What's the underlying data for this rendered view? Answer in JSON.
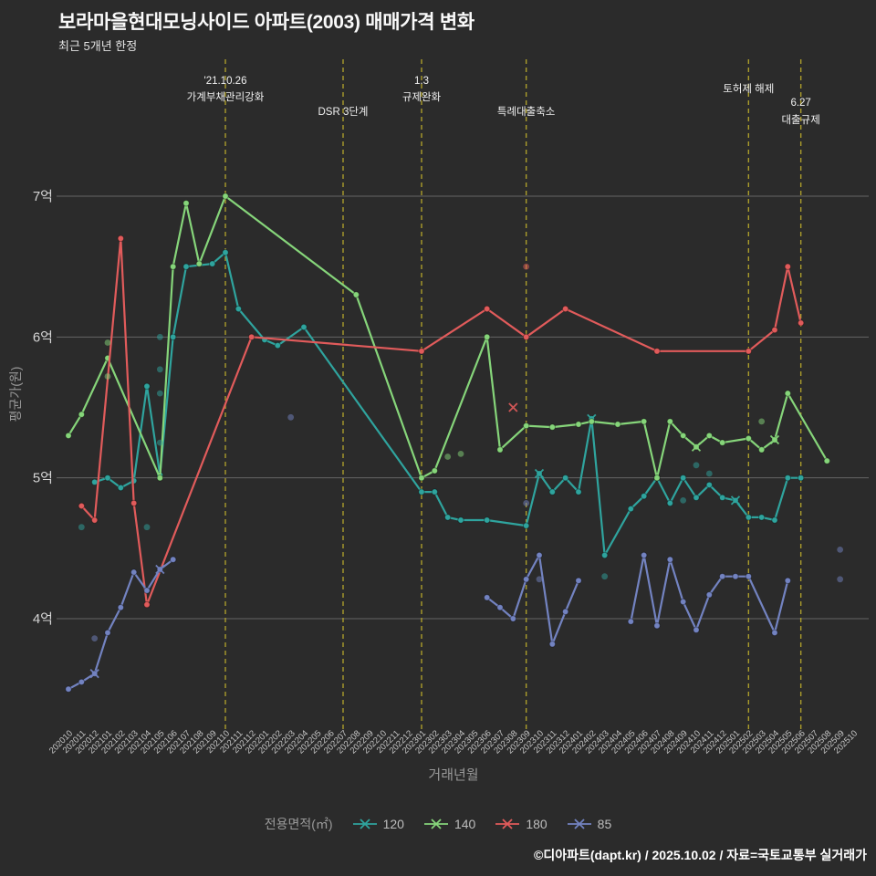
{
  "chart_data": {
    "type": "line",
    "title": "보라마을현대모닝사이드 아파트(2003) 매매가격 변화",
    "subtitle": "최근 5개년 한정",
    "xlabel": "거래년월",
    "ylabel": "평균가(원)",
    "footer": "©디아파트(dapt.kr) / 2025.10.02 / 자료=국토교통부 실거래가",
    "background": "#2b2b2b",
    "grid_color": "rgba(255,255,255,0.28)",
    "annotation_color": "#b2a42c",
    "annotation_text_color": "#f0f0f0",
    "x_tick_color": "#c8c8c8",
    "y_tick_color": "#d5d5d5",
    "axis_title_color": "#999999",
    "ylim": [
      3.2,
      7.97
    ],
    "y_ticks": [
      {
        "label": "4억",
        "value": 4
      },
      {
        "label": "5억",
        "value": 5
      },
      {
        "label": "6억",
        "value": 6
      },
      {
        "label": "7억",
        "value": 7
      }
    ],
    "x_categories": [
      "202010",
      "202011",
      "202012",
      "202101",
      "202102",
      "202103",
      "202104",
      "202105",
      "202106",
      "202107",
      "202108",
      "202109",
      "202110",
      "202111",
      "202112",
      "202201",
      "202202",
      "202203",
      "202204",
      "202205",
      "202206",
      "202207",
      "202208",
      "202209",
      "202210",
      "202211",
      "202212",
      "202301",
      "202302",
      "202303",
      "202304",
      "202305",
      "202306",
      "202307",
      "202308",
      "202309",
      "202310",
      "202311",
      "202312",
      "202401",
      "202402",
      "202403",
      "202404",
      "202405",
      "202406",
      "202407",
      "202408",
      "202409",
      "202410",
      "202411",
      "202412",
      "202501",
      "202502",
      "202503",
      "202504",
      "202505",
      "202506",
      "202507",
      "202508",
      "202509",
      "202510"
    ],
    "legend": {
      "title": "전용면적(㎡)"
    },
    "series": [
      {
        "name": "120",
        "color": "#2fa49e",
        "segments": [
          [
            [
              "202012",
              4.97
            ],
            [
              "202101",
              5.0
            ],
            [
              "202102",
              4.93
            ],
            [
              "202103",
              4.98
            ],
            [
              "202104",
              5.65
            ],
            [
              "202105",
              5.02
            ],
            [
              "202106",
              6.0
            ],
            [
              "202107",
              6.5
            ],
            [
              "202109",
              6.52
            ],
            [
              "202110",
              6.6
            ],
            [
              "202111",
              6.2
            ],
            [
              "202201",
              5.98
            ],
            [
              "202202",
              5.94
            ],
            [
              "202204",
              6.07
            ],
            [
              "202301",
              4.9
            ],
            [
              "202302",
              4.9
            ],
            [
              "202303",
              4.72
            ],
            [
              "202304",
              4.7
            ],
            [
              "202306",
              4.7
            ],
            [
              "202309",
              4.66
            ],
            [
              "202310",
              5.03
            ],
            [
              "202311",
              4.9
            ],
            [
              "202312",
              5.0
            ],
            [
              "202401",
              4.9
            ],
            [
              "202402",
              5.42
            ],
            [
              "202403",
              4.45
            ],
            [
              "202405",
              4.78
            ],
            [
              "202406",
              4.87
            ],
            [
              "202407",
              5.0
            ],
            [
              "202408",
              4.82
            ],
            [
              "202409",
              5.0
            ],
            [
              "202410",
              4.86
            ],
            [
              "202411",
              4.95
            ],
            [
              "202412",
              4.86
            ],
            [
              "202501",
              4.84
            ],
            [
              "202502",
              4.72
            ],
            [
              "202503",
              4.72
            ],
            [
              "202504",
              4.7
            ],
            [
              "202505",
              5.0
            ],
            [
              "202506",
              5.0
            ]
          ]
        ],
        "x_markers": [
          [
            "202310",
            5.03
          ],
          [
            "202402",
            5.42
          ],
          [
            "202501",
            4.84
          ]
        ]
      },
      {
        "name": "140",
        "color": "#86d57a",
        "segments": [
          [
            [
              "202010",
              5.3
            ],
            [
              "202011",
              5.45
            ],
            [
              "202101",
              5.85
            ],
            [
              "202105",
              5.0
            ],
            [
              "202106",
              6.5
            ],
            [
              "202107",
              6.95
            ],
            [
              "202108",
              6.52
            ],
            [
              "202110",
              7.0
            ],
            [
              "202208",
              6.3
            ],
            [
              "202301",
              5.0
            ],
            [
              "202302",
              5.05
            ],
            [
              "202306",
              6.0
            ],
            [
              "202307",
              5.2
            ],
            [
              "202309",
              5.37
            ],
            [
              "202311",
              5.36
            ],
            [
              "202401",
              5.38
            ],
            [
              "202402",
              5.4
            ],
            [
              "202404",
              5.38
            ],
            [
              "202406",
              5.4
            ],
            [
              "202407",
              5.0
            ],
            [
              "202408",
              5.4
            ],
            [
              "202409",
              5.3
            ],
            [
              "202410",
              5.22
            ],
            [
              "202411",
              5.3
            ],
            [
              "202412",
              5.25
            ],
            [
              "202502",
              5.28
            ],
            [
              "202503",
              5.2
            ],
            [
              "202504",
              5.27
            ],
            [
              "202505",
              5.6
            ],
            [
              "202508",
              5.12
            ]
          ]
        ],
        "x_markers": [
          [
            "202410",
            5.22
          ],
          [
            "202504",
            5.27
          ]
        ]
      },
      {
        "name": "180",
        "color": "#e15b5b",
        "segments": [
          [
            [
              "202011",
              4.8
            ],
            [
              "202012",
              4.7
            ],
            [
              "202102",
              6.7
            ],
            [
              "202103",
              4.82
            ],
            [
              "202104",
              4.1
            ],
            [
              "202112",
              6.0
            ],
            [
              "202301",
              5.9
            ],
            [
              "202306",
              6.2
            ],
            [
              "202309",
              6.0
            ],
            [
              "202312",
              6.2
            ],
            [
              "202407",
              5.9
            ],
            [
              "202502",
              5.9
            ],
            [
              "202504",
              6.05
            ],
            [
              "202505",
              6.5
            ],
            [
              "202506",
              6.1
            ]
          ]
        ],
        "x_markers": []
      },
      {
        "name": "85",
        "color": "#7383c1",
        "segments": [
          [
            [
              "202010",
              3.5
            ],
            [
              "202011",
              3.55
            ],
            [
              "202012",
              3.61
            ],
            [
              "202101",
              3.9
            ],
            [
              "202102",
              4.08
            ],
            [
              "202103",
              4.33
            ],
            [
              "202104",
              4.2
            ],
            [
              "202105",
              4.35
            ],
            [
              "202106",
              4.42
            ]
          ],
          [
            [
              "202306",
              4.15
            ],
            [
              "202307",
              4.08
            ],
            [
              "202308",
              4.0
            ],
            [
              "202309",
              4.28
            ],
            [
              "202310",
              4.45
            ],
            [
              "202311",
              3.82
            ],
            [
              "202312",
              4.05
            ],
            [
              "202401",
              4.27
            ]
          ],
          [
            [
              "202405",
              3.98
            ],
            [
              "202406",
              4.45
            ],
            [
              "202407",
              3.95
            ],
            [
              "202408",
              4.42
            ],
            [
              "202409",
              4.12
            ],
            [
              "202410",
              3.92
            ],
            [
              "202411",
              4.17
            ],
            [
              "202412",
              4.3
            ],
            [
              "202501",
              4.3
            ],
            [
              "202502",
              4.3
            ],
            [
              "202504",
              3.9
            ],
            [
              "202505",
              4.27
            ]
          ]
        ],
        "x_markers": [
          [
            "202012",
            3.61
          ],
          [
            "202105",
            4.35
          ]
        ]
      }
    ],
    "scatter": [
      {
        "x": "202011",
        "y": 4.65,
        "series": "120"
      },
      {
        "x": "202012",
        "y": 3.86,
        "series": "85"
      },
      {
        "x": "202101",
        "y": 5.72,
        "series": "140"
      },
      {
        "x": "202101",
        "y": 5.96,
        "series": "140"
      },
      {
        "x": "202104",
        "y": 4.65,
        "series": "120"
      },
      {
        "x": "202105",
        "y": 6.0,
        "series": "120"
      },
      {
        "x": "202105",
        "y": 5.77,
        "series": "120"
      },
      {
        "x": "202105",
        "y": 5.6,
        "series": "120"
      },
      {
        "x": "202105",
        "y": 5.25,
        "series": "120"
      },
      {
        "x": "202203",
        "y": 5.43,
        "series": "85"
      },
      {
        "x": "202303",
        "y": 5.15,
        "series": "140"
      },
      {
        "x": "202304",
        "y": 5.17,
        "series": "140"
      },
      {
        "x": "202308",
        "y": 5.5,
        "series": "180",
        "marker": "x"
      },
      {
        "x": "202309",
        "y": 6.5,
        "series": "180"
      },
      {
        "x": "202309",
        "y": 4.82,
        "series": "85"
      },
      {
        "x": "202310",
        "y": 4.28,
        "series": "85"
      },
      {
        "x": "202403",
        "y": 4.3,
        "series": "120"
      },
      {
        "x": "202409",
        "y": 4.84,
        "series": "120"
      },
      {
        "x": "202410",
        "y": 5.09,
        "series": "120"
      },
      {
        "x": "202411",
        "y": 5.03,
        "series": "120"
      },
      {
        "x": "202503",
        "y": 5.4,
        "series": "140"
      },
      {
        "x": "202509",
        "y": 4.49,
        "series": "85"
      },
      {
        "x": "202509",
        "y": 4.28,
        "series": "85"
      }
    ],
    "annotations": [
      {
        "x": "202110",
        "labels": [
          {
            "text": "'21.10.26",
            "y": 92
          },
          {
            "text": "가계부채관리강화",
            "y": 110
          }
        ]
      },
      {
        "x": "202207",
        "labels": [
          {
            "text": "DSR 3단계",
            "y": 126
          }
        ]
      },
      {
        "x": "202301",
        "labels": [
          {
            "text": "1.3",
            "y": 92
          },
          {
            "text": "규제완화",
            "y": 110
          }
        ]
      },
      {
        "x": "202309",
        "labels": [
          {
            "text": "특례대출축소",
            "y": 126
          }
        ]
      },
      {
        "x": "202502",
        "labels": [
          {
            "text": "토허제 해제",
            "y": 101
          }
        ]
      },
      {
        "x": "202506",
        "labels": [
          {
            "text": "6.27",
            "y": 116
          },
          {
            "text": "대출규제",
            "y": 135
          }
        ]
      }
    ]
  }
}
